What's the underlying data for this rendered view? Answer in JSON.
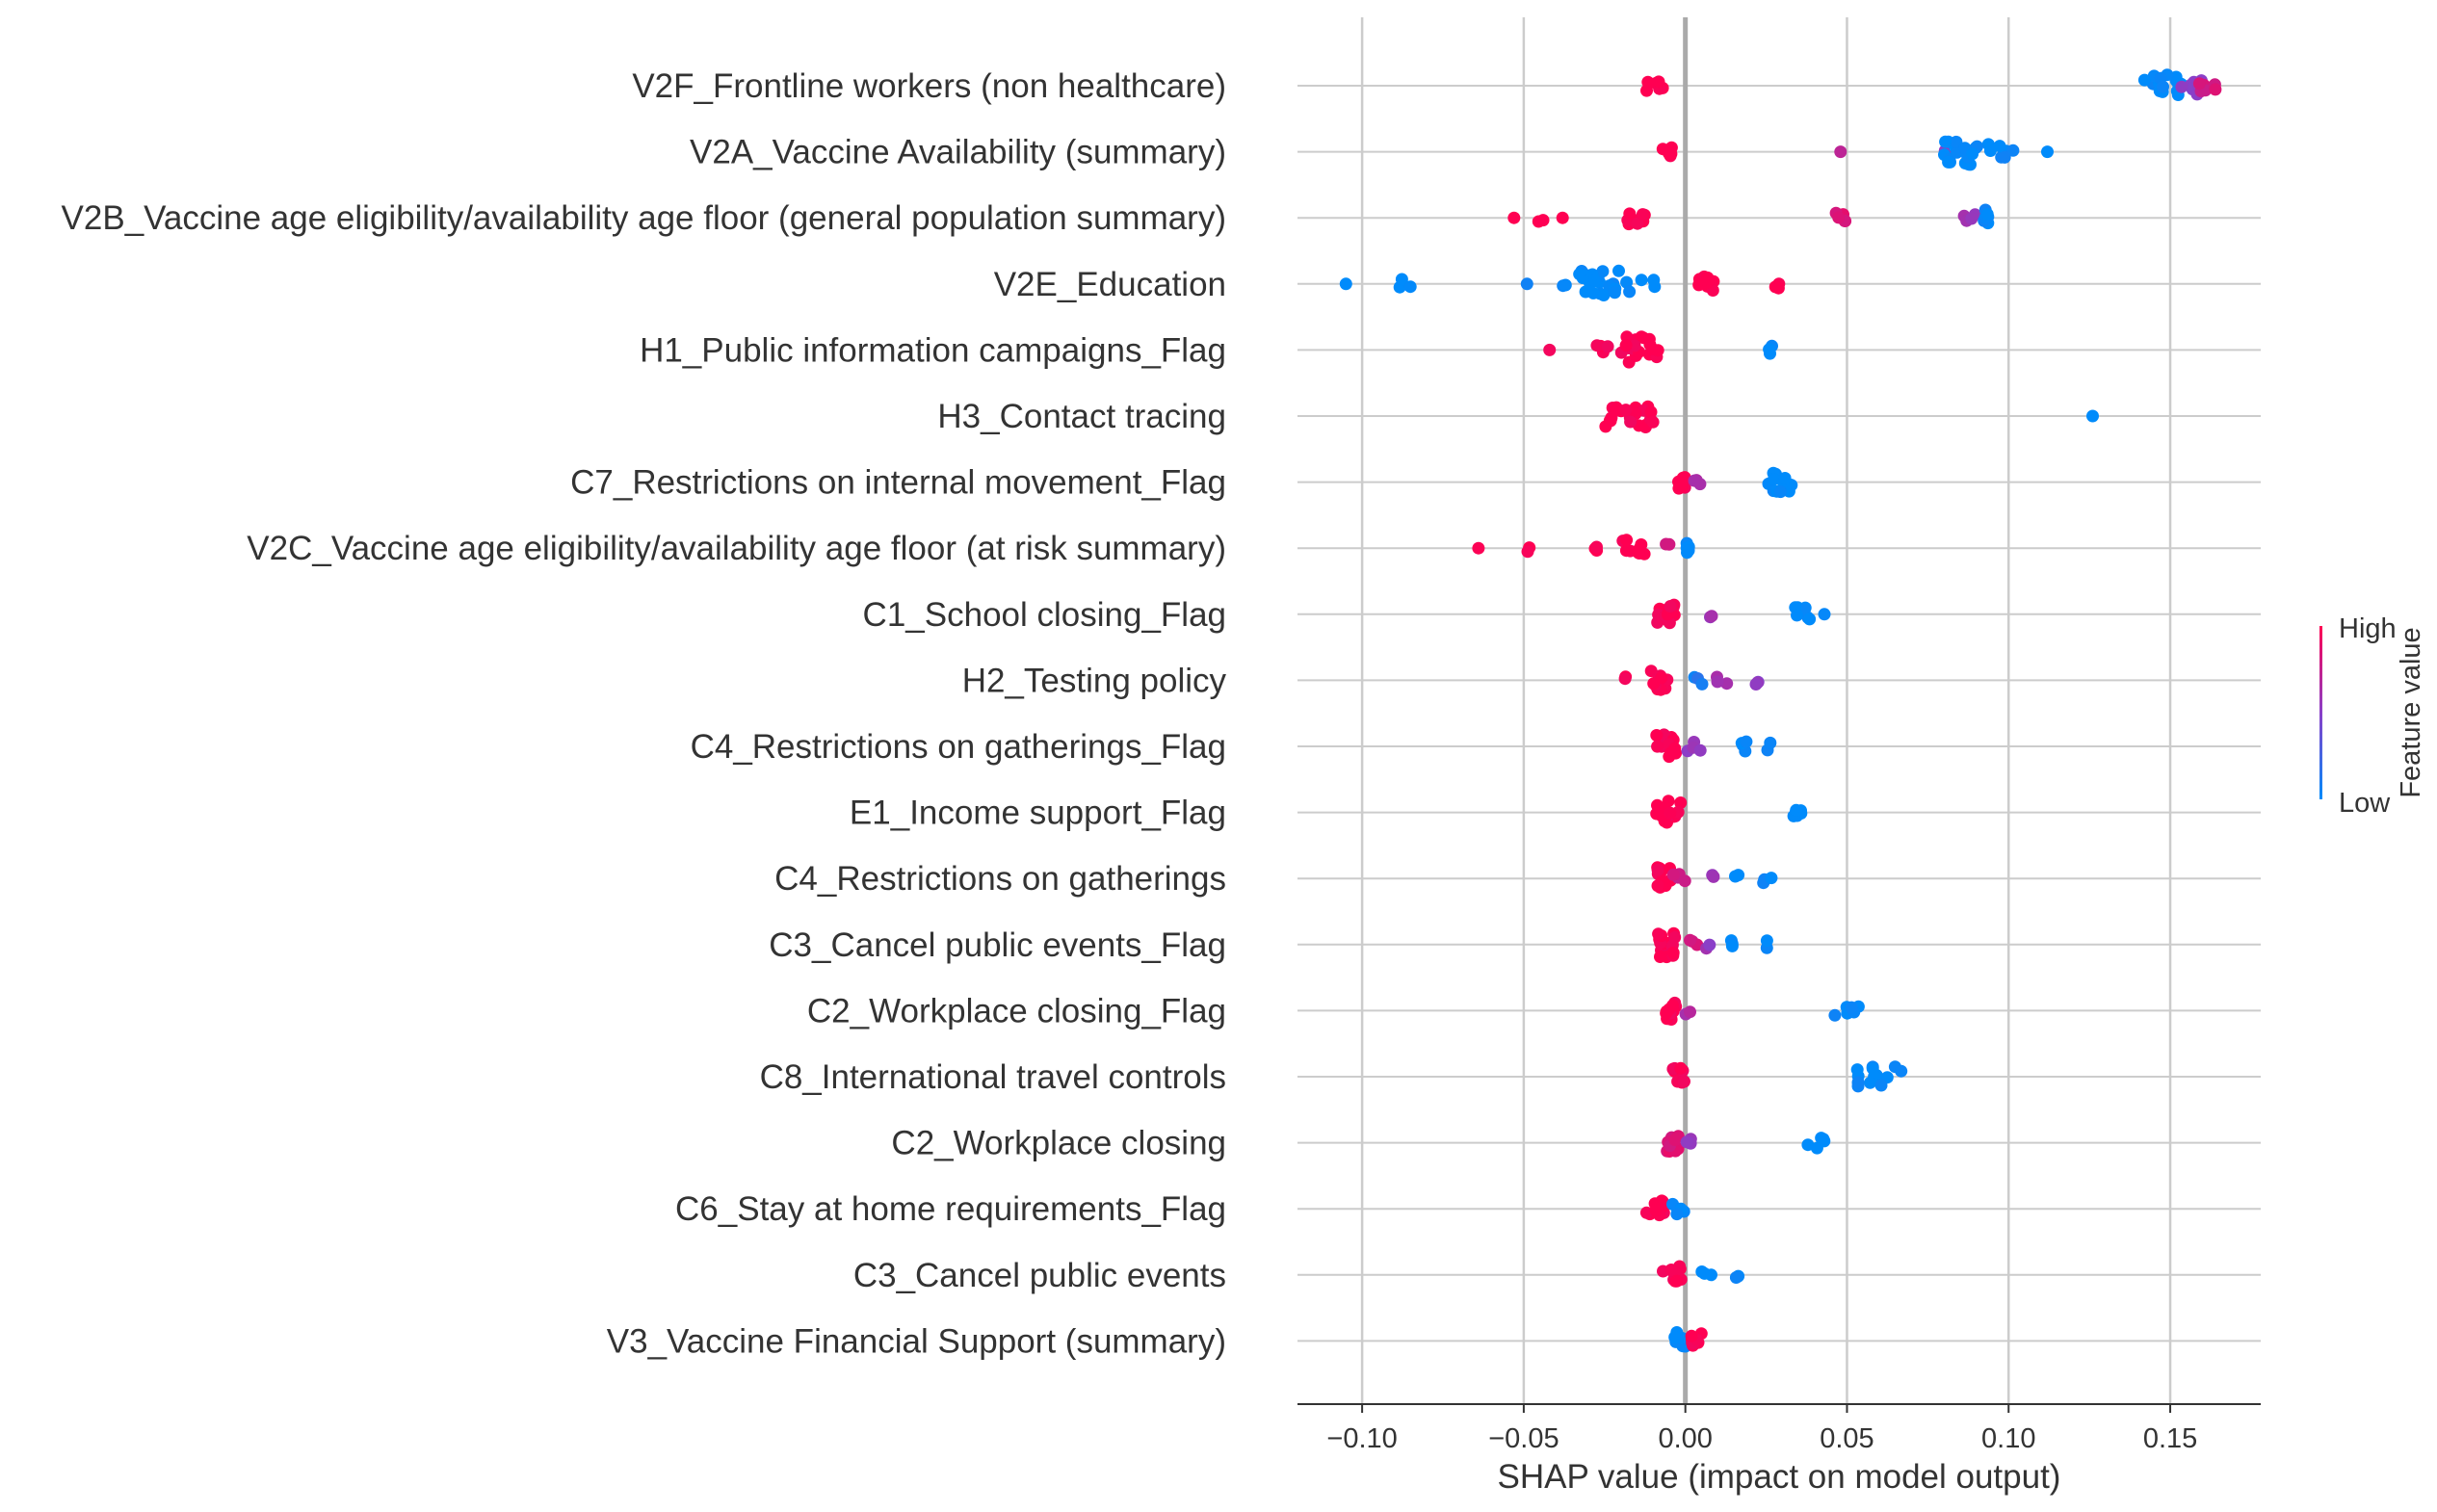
{
  "chart_data": {
    "type": "scatter",
    "subtype": "shap-beeswarm",
    "title": "",
    "xlabel": "SHAP value (impact on model output)",
    "ylabel": "",
    "xlim": [
      -0.12,
      0.178
    ],
    "xticks": [
      {
        "value": -0.1,
        "label": "−0.10"
      },
      {
        "value": -0.05,
        "label": "−0.05"
      },
      {
        "value": 0.0,
        "label": "0.00"
      },
      {
        "value": 0.05,
        "label": "0.05"
      },
      {
        "value": 0.1,
        "label": "0.10"
      },
      {
        "value": 0.15,
        "label": "0.15"
      }
    ],
    "grid": true,
    "colorbar": {
      "title": "Feature value",
      "high_label": "High",
      "low_label": "Low",
      "low_color": "#008bfb",
      "high_color": "#ff0052"
    },
    "features": [
      {
        "name": "V2F_Frontline workers  (non healthcare)",
        "clusters": [
          {
            "x": -0.01,
            "n": 6,
            "spread": 0.003,
            "v": 1.0
          },
          {
            "x": 0.148,
            "n": 18,
            "spread": 0.006,
            "v": 0.0
          },
          {
            "x": 0.156,
            "n": 10,
            "spread": 0.004,
            "v": 0.5
          },
          {
            "x": 0.162,
            "n": 6,
            "spread": 0.003,
            "v": 0.8
          }
        ]
      },
      {
        "name": "V2A_Vaccine Availability (summary)",
        "clusters": [
          {
            "x": -0.005,
            "n": 5,
            "spread": 0.002,
            "v": 1.0
          },
          {
            "x": 0.048,
            "n": 1,
            "spread": 0.0,
            "v": 0.75
          },
          {
            "x": 0.08,
            "n": 2,
            "spread": 0.001,
            "v": 0.55
          },
          {
            "x": 0.087,
            "n": 20,
            "spread": 0.007,
            "v": 0.0
          },
          {
            "x": 0.1,
            "n": 6,
            "spread": 0.006,
            "v": 0.0
          },
          {
            "x": 0.112,
            "n": 1,
            "spread": 0.0,
            "v": 0.0
          }
        ]
      },
      {
        "name": "V2B_Vaccine age eligibility/availability age floor (general population summary)",
        "clusters": [
          {
            "x": -0.053,
            "n": 1,
            "spread": 0.0,
            "v": 1.0
          },
          {
            "x": -0.045,
            "n": 2,
            "spread": 0.001,
            "v": 1.0
          },
          {
            "x": -0.038,
            "n": 1,
            "spread": 0.0,
            "v": 1.0
          },
          {
            "x": -0.015,
            "n": 8,
            "spread": 0.003,
            "v": 1.0
          },
          {
            "x": 0.048,
            "n": 5,
            "spread": 0.002,
            "v": 0.85
          },
          {
            "x": 0.088,
            "n": 4,
            "spread": 0.002,
            "v": 0.6
          },
          {
            "x": 0.093,
            "n": 10,
            "spread": 0.001,
            "v": 0.0
          }
        ]
      },
      {
        "name": "V2E_Education",
        "clusters": [
          {
            "x": -0.105,
            "n": 1,
            "spread": 0.0,
            "v": 0.0
          },
          {
            "x": -0.087,
            "n": 3,
            "spread": 0.002,
            "v": 0.0
          },
          {
            "x": -0.049,
            "n": 1,
            "spread": 0.0,
            "v": 0.0
          },
          {
            "x": -0.039,
            "n": 2,
            "spread": 0.002,
            "v": 0.0
          },
          {
            "x": -0.025,
            "n": 22,
            "spread": 0.008,
            "v": 0.0
          },
          {
            "x": -0.013,
            "n": 3,
            "spread": 0.004,
            "v": 0.0
          },
          {
            "x": 0.007,
            "n": 10,
            "spread": 0.003,
            "v": 1.0
          },
          {
            "x": 0.028,
            "n": 3,
            "spread": 0.001,
            "v": 1.0
          }
        ]
      },
      {
        "name": "H1_Public information campaigns_Flag",
        "clusters": [
          {
            "x": -0.042,
            "n": 1,
            "spread": 0.0,
            "v": 1.0
          },
          {
            "x": -0.026,
            "n": 4,
            "spread": 0.003,
            "v": 1.0
          },
          {
            "x": -0.014,
            "n": 18,
            "spread": 0.006,
            "v": 1.0
          },
          {
            "x": 0.026,
            "n": 3,
            "spread": 0.001,
            "v": 0.0
          }
        ]
      },
      {
        "name": "H3_Contact tracing",
        "clusters": [
          {
            "x": -0.017,
            "n": 22,
            "spread": 0.008,
            "v": 1.0
          },
          {
            "x": 0.126,
            "n": 1,
            "spread": 0.0,
            "v": 0.0
          }
        ]
      },
      {
        "name": "C7_Restrictions on internal movement_Flag",
        "clusters": [
          {
            "x": -0.002,
            "n": 6,
            "spread": 0.002,
            "v": 1.0
          },
          {
            "x": 0.004,
            "n": 3,
            "spread": 0.002,
            "v": 0.6
          },
          {
            "x": 0.028,
            "n": 14,
            "spread": 0.005,
            "v": 0.0
          }
        ]
      },
      {
        "name": "V2C_Vaccine age eligibility/availability age floor (at risk summary)",
        "clusters": [
          {
            "x": -0.064,
            "n": 1,
            "spread": 0.0,
            "v": 1.0
          },
          {
            "x": -0.048,
            "n": 2,
            "spread": 0.001,
            "v": 1.0
          },
          {
            "x": -0.029,
            "n": 3,
            "spread": 0.002,
            "v": 1.0
          },
          {
            "x": -0.016,
            "n": 10,
            "spread": 0.004,
            "v": 1.0
          },
          {
            "x": -0.005,
            "n": 2,
            "spread": 0.001,
            "v": 0.8
          },
          {
            "x": 0.001,
            "n": 6,
            "spread": 0.001,
            "v": 0.0
          }
        ]
      },
      {
        "name": "C1_School closing_Flag",
        "clusters": [
          {
            "x": -0.006,
            "n": 14,
            "spread": 0.003,
            "v": 1.0
          },
          {
            "x": 0.008,
            "n": 2,
            "spread": 0.001,
            "v": 0.6
          },
          {
            "x": 0.037,
            "n": 7,
            "spread": 0.003,
            "v": 0.0
          },
          {
            "x": 0.043,
            "n": 1,
            "spread": 0.0,
            "v": 0.0
          }
        ]
      },
      {
        "name": "H2_Testing policy",
        "clusters": [
          {
            "x": -0.018,
            "n": 2,
            "spread": 0.001,
            "v": 1.0
          },
          {
            "x": -0.008,
            "n": 12,
            "spread": 0.003,
            "v": 1.0
          },
          {
            "x": 0.004,
            "n": 3,
            "spread": 0.002,
            "v": 0.1
          },
          {
            "x": 0.011,
            "n": 3,
            "spread": 0.002,
            "v": 0.6
          },
          {
            "x": 0.022,
            "n": 3,
            "spread": 0.001,
            "v": 0.55
          }
        ]
      },
      {
        "name": "C4_Restrictions on gatherings_Flag",
        "clusters": [
          {
            "x": -0.006,
            "n": 16,
            "spread": 0.003,
            "v": 1.0
          },
          {
            "x": 0.002,
            "n": 4,
            "spread": 0.003,
            "v": 0.55
          },
          {
            "x": 0.018,
            "n": 4,
            "spread": 0.003,
            "v": 0.0
          },
          {
            "x": 0.026,
            "n": 2,
            "spread": 0.001,
            "v": 0.0
          }
        ]
      },
      {
        "name": "E1_Income support_Flag",
        "clusters": [
          {
            "x": -0.005,
            "n": 16,
            "spread": 0.004,
            "v": 1.0
          },
          {
            "x": 0.034,
            "n": 6,
            "spread": 0.002,
            "v": 0.0
          }
        ]
      },
      {
        "name": "C4_Restrictions on gatherings",
        "clusters": [
          {
            "x": -0.007,
            "n": 14,
            "spread": 0.003,
            "v": 1.0
          },
          {
            "x": -0.002,
            "n": 4,
            "spread": 0.002,
            "v": 0.8
          },
          {
            "x": 0.008,
            "n": 2,
            "spread": 0.001,
            "v": 0.55
          },
          {
            "x": 0.016,
            "n": 2,
            "spread": 0.001,
            "v": 0.0
          },
          {
            "x": 0.025,
            "n": 3,
            "spread": 0.002,
            "v": 0.0
          }
        ]
      },
      {
        "name": "C3_Cancel public events_Flag",
        "clusters": [
          {
            "x": -0.007,
            "n": 18,
            "spread": 0.004,
            "v": 1.0
          },
          {
            "x": 0.002,
            "n": 3,
            "spread": 0.002,
            "v": 0.8
          },
          {
            "x": 0.007,
            "n": 2,
            "spread": 0.001,
            "v": 0.55
          },
          {
            "x": 0.016,
            "n": 3,
            "spread": 0.002,
            "v": 0.0
          },
          {
            "x": 0.025,
            "n": 2,
            "spread": 0.001,
            "v": 0.0
          }
        ]
      },
      {
        "name": "C2_Workplace closing_Flag",
        "clusters": [
          {
            "x": -0.004,
            "n": 12,
            "spread": 0.002,
            "v": 1.0
          },
          {
            "x": 0.001,
            "n": 2,
            "spread": 0.001,
            "v": 0.65
          },
          {
            "x": 0.05,
            "n": 6,
            "spread": 0.004,
            "v": 0.0
          }
        ]
      },
      {
        "name": "C8_International travel controls",
        "clusters": [
          {
            "x": -0.002,
            "n": 10,
            "spread": 0.002,
            "v": 1.0
          },
          {
            "x": 0.06,
            "n": 14,
            "spread": 0.007,
            "v": 0.0
          }
        ]
      },
      {
        "name": "C2_Workplace closing",
        "clusters": [
          {
            "x": -0.004,
            "n": 10,
            "spread": 0.002,
            "v": 0.85
          },
          {
            "x": 0.002,
            "n": 3,
            "spread": 0.002,
            "v": 0.55
          },
          {
            "x": 0.04,
            "n": 5,
            "spread": 0.003,
            "v": 0.0
          }
        ]
      },
      {
        "name": "C6_Stay at home requirements_Flag",
        "clusters": [
          {
            "x": -0.009,
            "n": 10,
            "spread": 0.003,
            "v": 1.0
          },
          {
            "x": -0.002,
            "n": 6,
            "spread": 0.002,
            "v": 0.0
          }
        ]
      },
      {
        "name": "C3_Cancel public events",
        "clusters": [
          {
            "x": -0.004,
            "n": 12,
            "spread": 0.003,
            "v": 1.0
          },
          {
            "x": 0.004,
            "n": 2,
            "spread": 0.002,
            "v": 0.0
          },
          {
            "x": 0.008,
            "n": 1,
            "spread": 0.0,
            "v": 0.0
          },
          {
            "x": 0.016,
            "n": 2,
            "spread": 0.001,
            "v": 0.0
          }
        ]
      },
      {
        "name": "V3_Vaccine Financial Support (summary)",
        "clusters": [
          {
            "x": -0.002,
            "n": 10,
            "spread": 0.002,
            "v": 0.0
          },
          {
            "x": 0.003,
            "n": 8,
            "spread": 0.002,
            "v": 1.0
          }
        ]
      }
    ]
  }
}
